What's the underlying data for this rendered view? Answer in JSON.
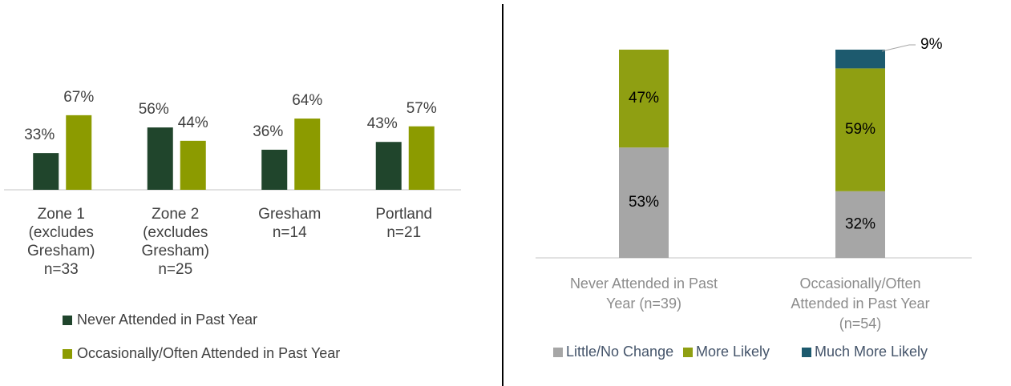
{
  "chart_data": [
    {
      "type": "bar",
      "categories": [
        [
          "Zone 1",
          "(excludes",
          "Gresham)",
          "n=33"
        ],
        [
          "Zone 2",
          "(excludes",
          "Gresham)",
          "n=25"
        ],
        [
          "Gresham",
          "n=14"
        ],
        [
          "Portland",
          "n=21"
        ]
      ],
      "series": [
        {
          "name": "Never Attended in Past Year",
          "color": "#20452c",
          "values": [
            33,
            56,
            36,
            43
          ],
          "value_labels": [
            "33%",
            "56%",
            "36%",
            "43%"
          ]
        },
        {
          "name": "Occasionally/Often Attended in Past Year",
          "color": "#8c9b00",
          "values": [
            67,
            44,
            64,
            57
          ],
          "value_labels": [
            "67%",
            "44%",
            "64%",
            "57%"
          ]
        }
      ],
      "ylim": [
        0,
        100
      ]
    },
    {
      "type": "stacked_bar",
      "categories": [
        [
          "Never Attended in Past",
          "Year (n=39)"
        ],
        [
          "Occasionally/Often",
          "Attended in Past Year",
          "(n=54)"
        ]
      ],
      "series": [
        {
          "name": "Little/No Change",
          "color": "#a6a6a6",
          "values": [
            53,
            32
          ],
          "value_labels": [
            "53%",
            "32%"
          ]
        },
        {
          "name": "More Likely",
          "color": "#8f9f12",
          "values": [
            47,
            59
          ],
          "value_labels": [
            "47%",
            "59%"
          ]
        },
        {
          "name": "Much More Likely",
          "color": "#1d5a6e",
          "values": [
            null,
            9
          ],
          "value_labels": [
            null,
            "9%"
          ]
        }
      ],
      "ylim": [
        0,
        100
      ]
    }
  ]
}
